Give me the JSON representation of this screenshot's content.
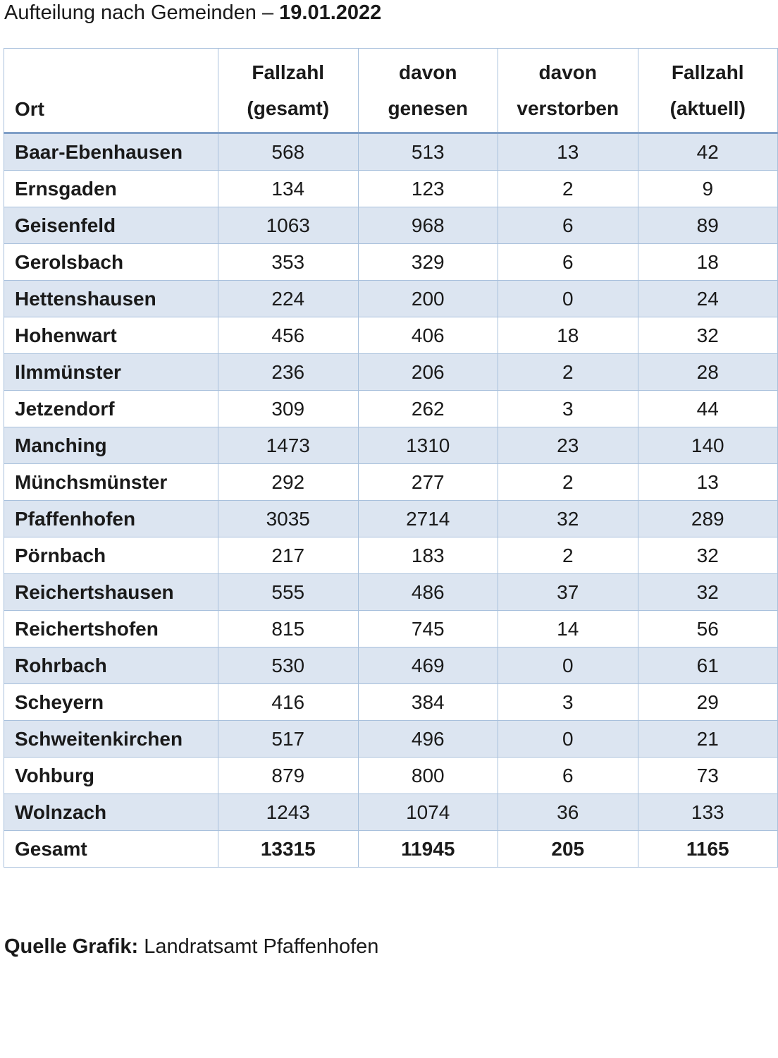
{
  "title": {
    "prefix": "Aufteilung nach Gemeinden – ",
    "date": "19.01.2022"
  },
  "table": {
    "headers": [
      {
        "line1": "",
        "line2": "Ort"
      },
      {
        "line1": "Fallzahl",
        "line2": "(gesamt)"
      },
      {
        "line1": "davon",
        "line2": "genesen"
      },
      {
        "line1": "davon",
        "line2": "verstorben"
      },
      {
        "line1": "Fallzahl",
        "line2": "(aktuell)"
      }
    ],
    "rows": [
      {
        "ort": "Baar-Ebenhausen",
        "gesamt": "568",
        "genesen": "513",
        "verstorben": "13",
        "aktuell": "42"
      },
      {
        "ort": "Ernsgaden",
        "gesamt": "134",
        "genesen": "123",
        "verstorben": "2",
        "aktuell": "9"
      },
      {
        "ort": "Geisenfeld",
        "gesamt": "1063",
        "genesen": "968",
        "verstorben": "6",
        "aktuell": "89"
      },
      {
        "ort": "Gerolsbach",
        "gesamt": "353",
        "genesen": "329",
        "verstorben": "6",
        "aktuell": "18"
      },
      {
        "ort": "Hettenshausen",
        "gesamt": "224",
        "genesen": "200",
        "verstorben": "0",
        "aktuell": "24"
      },
      {
        "ort": "Hohenwart",
        "gesamt": "456",
        "genesen": "406",
        "verstorben": "18",
        "aktuell": "32"
      },
      {
        "ort": "Ilmmünster",
        "gesamt": "236",
        "genesen": "206",
        "verstorben": "2",
        "aktuell": "28"
      },
      {
        "ort": "Jetzendorf",
        "gesamt": "309",
        "genesen": "262",
        "verstorben": "3",
        "aktuell": "44"
      },
      {
        "ort": "Manching",
        "gesamt": "1473",
        "genesen": "1310",
        "verstorben": "23",
        "aktuell": "140"
      },
      {
        "ort": "Münchsmünster",
        "gesamt": "292",
        "genesen": "277",
        "verstorben": "2",
        "aktuell": "13"
      },
      {
        "ort": "Pfaffenhofen",
        "gesamt": "3035",
        "genesen": "2714",
        "verstorben": "32",
        "aktuell": "289"
      },
      {
        "ort": "Pörnbach",
        "gesamt": "217",
        "genesen": "183",
        "verstorben": "2",
        "aktuell": "32"
      },
      {
        "ort": "Reichertshausen",
        "gesamt": "555",
        "genesen": "486",
        "verstorben": "37",
        "aktuell": "32"
      },
      {
        "ort": "Reichertshofen",
        "gesamt": "815",
        "genesen": "745",
        "verstorben": "14",
        "aktuell": "56"
      },
      {
        "ort": "Rohrbach",
        "gesamt": "530",
        "genesen": "469",
        "verstorben": "0",
        "aktuell": "61"
      },
      {
        "ort": "Scheyern",
        "gesamt": "416",
        "genesen": "384",
        "verstorben": "3",
        "aktuell": "29"
      },
      {
        "ort": "Schweitenkirchen",
        "gesamt": "517",
        "genesen": "496",
        "verstorben": "0",
        "aktuell": "21"
      },
      {
        "ort": "Vohburg",
        "gesamt": "879",
        "genesen": "800",
        "verstorben": "6",
        "aktuell": "73"
      },
      {
        "ort": "Wolnzach",
        "gesamt": "1243",
        "genesen": "1074",
        "verstorben": "36",
        "aktuell": "133"
      }
    ],
    "total": {
      "ort": "Gesamt",
      "gesamt": "13315",
      "genesen": "11945",
      "verstorben": "205",
      "aktuell": "1165"
    }
  },
  "source": {
    "label": "Quelle Grafik:",
    "text": " Landratsamt Pfaffenhofen"
  },
  "colors": {
    "band": "#dce5f1",
    "border": "#a8c0dc",
    "header_rule": "#7f9fc7"
  }
}
